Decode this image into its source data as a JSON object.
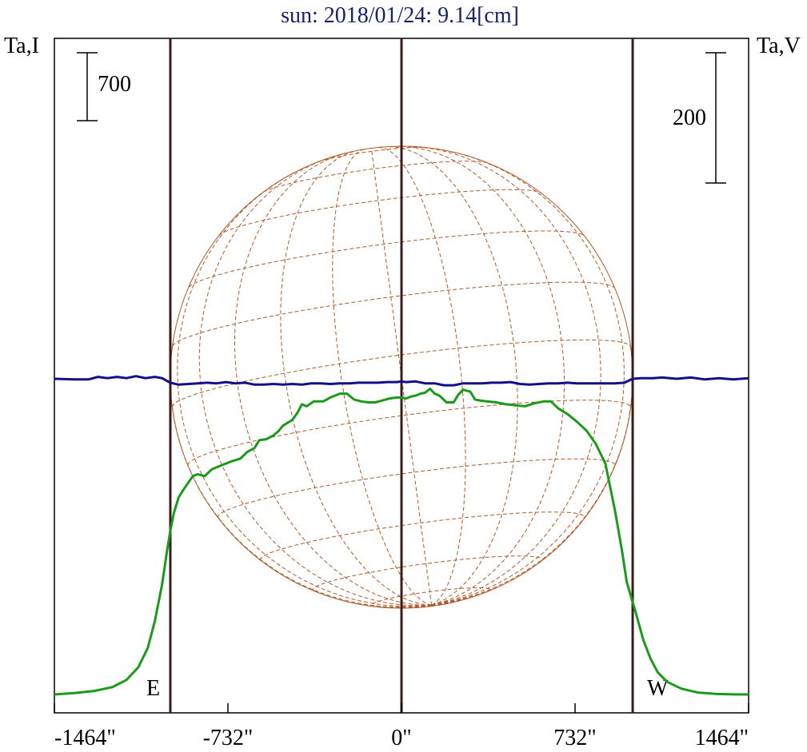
{
  "chart_data": {
    "type": "line",
    "title": "sun: 2018/01/24: 9.14[cm]",
    "left_axis_label": "Ta,I",
    "right_axis_label": "Ta,V",
    "x_tick_labels": [
      "-1464\"",
      "-732\"",
      "0\"",
      "732\"",
      "1464\""
    ],
    "x_ticks": [
      -1464,
      -732,
      0,
      732,
      1464
    ],
    "xlim": [
      -1464,
      1464
    ],
    "x_unit": "arcsec",
    "scale_bars": [
      {
        "label": "700",
        "value": 700,
        "axis": "left"
      },
      {
        "label": "200",
        "value": 200,
        "axis": "right"
      }
    ],
    "limb_markers": [
      {
        "label": "E",
        "x": -975
      },
      {
        "label": "",
        "x": 0
      },
      {
        "label": "W",
        "x": 975
      }
    ],
    "solar_radius": 975,
    "colors": {
      "stokes_i": "#1a9a1a",
      "stokes_v": "#10108a",
      "grid_disk": "#b05a28",
      "limb_lines": "#3b1c1c",
      "title": "#1a1f6e"
    },
    "series": [
      {
        "name": "",
        "axis": "left",
        "x": [
          -1464,
          -1380,
          -1300,
          -1220,
          -1160,
          -1110,
          -1070,
          -1040,
          -1010,
          -990,
          -975,
          -960,
          -940,
          -920,
          -900,
          -880,
          -860,
          -830,
          -800,
          -760,
          -720,
          -680,
          -650,
          -620,
          -600,
          -570,
          -540,
          -520,
          -500,
          -480,
          -460,
          -440,
          -420,
          -400,
          -370,
          -330,
          -300,
          -260,
          -230,
          -200,
          -170,
          -140,
          -110,
          -80,
          -50,
          -20,
          0,
          20,
          40,
          60,
          80,
          100,
          120,
          140,
          160,
          190,
          220,
          240,
          260,
          290,
          310,
          330,
          360,
          400,
          440,
          480,
          520,
          560,
          600,
          630,
          660,
          700,
          740,
          780,
          820,
          860,
          900,
          930,
          950,
          970,
          985,
          1000,
          1020,
          1050,
          1080,
          1120,
          1180,
          1250,
          1330,
          1400,
          1464
        ],
        "y": [
          0,
          15,
          35,
          75,
          150,
          280,
          480,
          760,
          1130,
          1460,
          1690,
          1870,
          2030,
          2110,
          2180,
          2250,
          2270,
          2250,
          2320,
          2360,
          2400,
          2430,
          2500,
          2540,
          2620,
          2630,
          2670,
          2710,
          2770,
          2800,
          2830,
          2900,
          2990,
          2970,
          3020,
          3020,
          3060,
          3100,
          3100,
          3040,
          3020,
          3010,
          3010,
          3030,
          3050,
          3060,
          3060,
          3050,
          3070,
          3080,
          3100,
          3110,
          3150,
          3100,
          3080,
          3010,
          3010,
          3090,
          3140,
          3120,
          3040,
          3030,
          3020,
          3010,
          2990,
          2980,
          2970,
          3000,
          3020,
          3020,
          2950,
          2890,
          2810,
          2720,
          2580,
          2380,
          1900,
          1480,
          1160,
          990,
          870,
          740,
          560,
          370,
          230,
          130,
          60,
          20,
          5,
          1,
          0
        ],
        "unit": "relative (scale bar 700)"
      },
      {
        "name": "",
        "axis": "right",
        "x": [
          -1464,
          -1380,
          -1320,
          -1280,
          -1240,
          -1200,
          -1160,
          -1120,
          -1080,
          -1040,
          -1010,
          -975,
          -940,
          -900,
          -860,
          -820,
          -780,
          -740,
          -700,
          -660,
          -620,
          -580,
          -540,
          -500,
          -460,
          -420,
          -380,
          -340,
          -300,
          -260,
          -220,
          -180,
          -140,
          -100,
          -60,
          -20,
          0,
          20,
          60,
          100,
          140,
          180,
          220,
          260,
          300,
          340,
          380,
          420,
          460,
          500,
          540,
          580,
          620,
          660,
          700,
          740,
          780,
          820,
          860,
          900,
          940,
          975,
          1010,
          1060,
          1100,
          1160,
          1220,
          1280,
          1340,
          1400,
          1464
        ],
        "y": [
          0,
          -1,
          -1,
          3,
          1,
          3,
          1,
          4,
          1,
          3,
          1,
          -6,
          -9,
          -8,
          -7,
          -6,
          -7,
          -5,
          -7,
          -6,
          -9,
          -9,
          -8,
          -9,
          -8,
          -9,
          -7,
          -7,
          -8,
          -7,
          -7,
          -6,
          -6,
          -6,
          -5,
          -5,
          -4,
          -5,
          -4,
          -7,
          -7,
          -10,
          -10,
          -7,
          -7,
          -7,
          -6,
          -6,
          -5,
          -8,
          -9,
          -8,
          -7,
          -7,
          -6,
          -7,
          -7,
          -7,
          -7,
          -7,
          -6,
          0,
          1,
          1,
          2,
          0,
          2,
          -1,
          1,
          -1,
          1
        ],
        "unit": "relative (scale bar 200)"
      }
    ],
    "disk_grid": {
      "shown": true,
      "b0_deg": -5.5,
      "p_deg": 7.5,
      "latitude_step_deg": 15,
      "longitude_step_deg": 15
    }
  }
}
